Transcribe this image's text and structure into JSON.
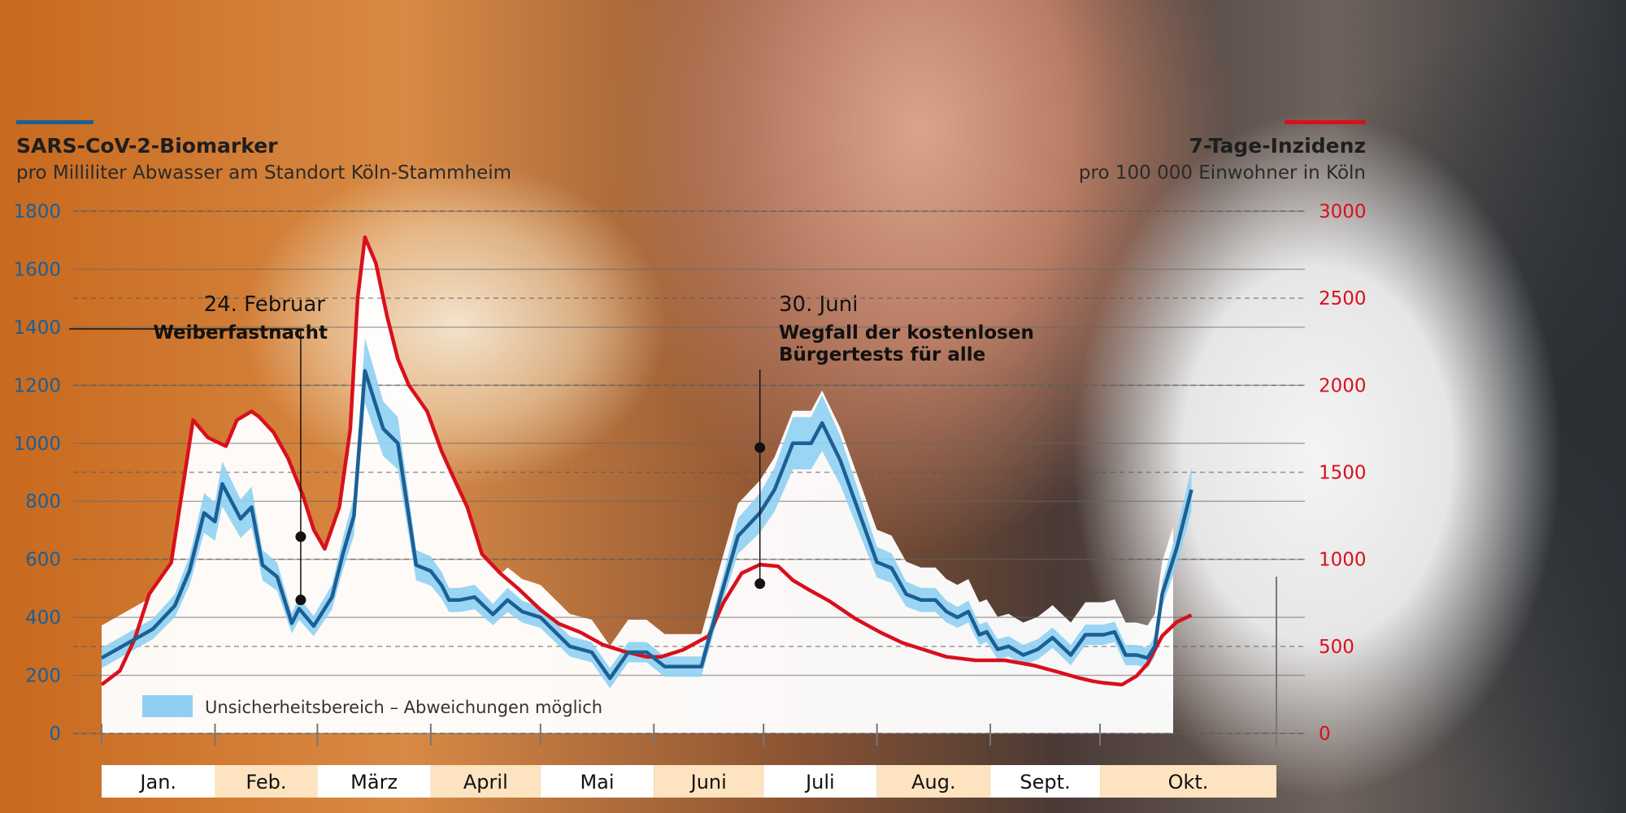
{
  "chart_data": {
    "type": "line",
    "title_left": "SARS-CoV-2-Biomarker",
    "subtitle_left": "pro Milliliter Abwasser am Standort Köln-Stammheim",
    "title_right": "7-Tage-Inzidenz",
    "subtitle_right": "pro 100 000 Einwohner in Köln",
    "y_left": {
      "range": [
        0,
        1800
      ],
      "ticks": [
        0,
        200,
        400,
        600,
        800,
        1000,
        1200,
        1400,
        1600,
        1800
      ]
    },
    "y_right": {
      "range": [
        0,
        3000
      ],
      "ticks": [
        0,
        500,
        1000,
        1500,
        2000,
        2500,
        3000
      ]
    },
    "x_axis": {
      "unit": "day of year 2022",
      "range": [
        1,
        300
      ]
    },
    "months": [
      {
        "label": "Jan.",
        "start": 1,
        "end": 31
      },
      {
        "label": "Feb.",
        "start": 32,
        "end": 59
      },
      {
        "label": "März",
        "start": 60,
        "end": 90
      },
      {
        "label": "April",
        "start": 91,
        "end": 120
      },
      {
        "label": "Mai",
        "start": 121,
        "end": 151
      },
      {
        "label": "Juni",
        "start": 152,
        "end": 181
      },
      {
        "label": "Juli",
        "start": 182,
        "end": 212
      },
      {
        "label": "Aug.",
        "start": 213,
        "end": 243
      },
      {
        "label": "Sept.",
        "start": 244,
        "end": 273
      },
      {
        "label": "Okt.",
        "start": 274,
        "end": 304
      }
    ],
    "legend_band": "Unsicherheitsbereich – Abweichungen möglich",
    "annotations": [
      {
        "date": "24. Februar",
        "label": "Weiberfastnacht",
        "day": 55,
        "biomarker": 460,
        "incidence": 1130
      },
      {
        "date": "30. Juni",
        "label_line1": "Wegfall der kostenlosen",
        "label_line2": "Bürgertests für alle",
        "day": 181,
        "biomarker": 985,
        "incidence": 860
      }
    ],
    "series": [
      {
        "name": "SARS-CoV-2-Biomarker",
        "axis": "left",
        "color": "#1b5f95",
        "x": [
          1,
          8,
          15,
          21,
          25,
          29,
          32,
          34,
          39,
          42,
          45,
          49,
          53,
          55,
          59,
          64,
          67,
          70,
          73,
          78,
          82,
          87,
          91,
          94,
          96,
          99,
          103,
          108,
          112,
          116,
          121,
          125,
          129,
          135,
          140,
          145,
          150,
          155,
          160,
          165,
          170,
          175,
          181,
          185,
          190,
          195,
          198,
          203,
          207,
          213,
          217,
          221,
          225,
          229,
          232,
          235,
          238,
          241,
          243,
          246,
          249,
          253,
          257,
          261,
          266,
          270,
          275,
          278,
          281,
          284,
          287,
          289,
          291,
          295,
          299
        ],
        "y": [
          260,
          310,
          360,
          440,
          560,
          760,
          730,
          860,
          740,
          780,
          580,
          540,
          380,
          430,
          370,
          470,
          620,
          750,
          1250,
          1050,
          1000,
          580,
          560,
          510,
          460,
          460,
          470,
          410,
          460,
          420,
          400,
          350,
          300,
          280,
          190,
          280,
          280,
          230,
          230,
          230,
          460,
          680,
          760,
          840,
          1000,
          1000,
          1070,
          940,
          800,
          590,
          570,
          480,
          460,
          460,
          420,
          400,
          420,
          340,
          350,
          290,
          300,
          270,
          290,
          330,
          270,
          340,
          340,
          350,
          270,
          270,
          260,
          300,
          480,
          640,
          840
        ]
      },
      {
        "name": "7-Tage-Inzidenz",
        "axis": "right",
        "color": "#d8101c",
        "x": [
          1,
          6,
          10,
          14,
          20,
          26,
          30,
          35,
          38,
          42,
          44,
          48,
          52,
          56,
          59,
          62,
          66,
          69,
          71,
          73,
          76,
          79,
          82,
          85,
          90,
          94,
          97,
          101,
          105,
          110,
          115,
          121,
          126,
          132,
          138,
          144,
          150,
          154,
          160,
          167,
          171,
          176,
          181,
          186,
          190,
          194,
          200,
          207,
          214,
          220,
          226,
          232,
          240,
          248,
          256,
          263,
          268,
          272,
          275,
          280,
          284,
          287,
          291,
          295,
          299
        ],
        "y": [
          280,
          360,
          540,
          800,
          980,
          1800,
          1700,
          1650,
          1800,
          1850,
          1820,
          1730,
          1580,
          1370,
          1170,
          1060,
          1300,
          1750,
          2500,
          2850,
          2700,
          2400,
          2150,
          2000,
          1850,
          1620,
          1480,
          1300,
          1030,
          920,
          830,
          710,
          630,
          580,
          510,
          470,
          440,
          440,
          480,
          560,
          750,
          920,
          970,
          960,
          880,
          830,
          760,
          660,
          580,
          520,
          480,
          440,
          420,
          420,
          390,
          350,
          320,
          300,
          290,
          280,
          330,
          400,
          560,
          640,
          680
        ]
      }
    ]
  }
}
